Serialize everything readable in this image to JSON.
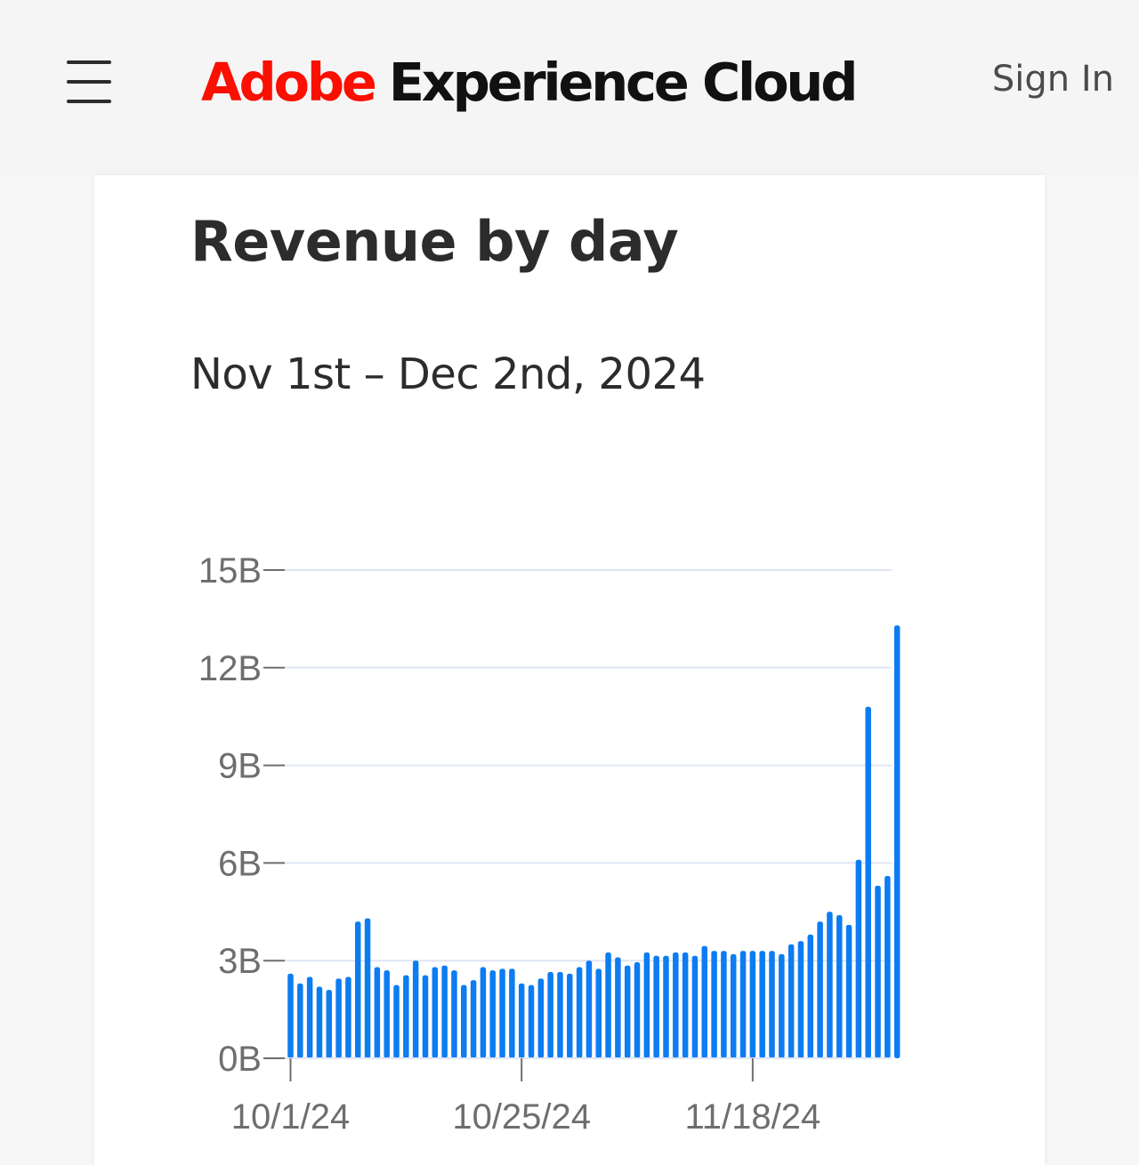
{
  "header": {
    "brand": "Adobe",
    "product": "Experience Cloud",
    "signin_label": "Sign In"
  },
  "card": {
    "title": "Revenue by day",
    "subtitle": "Nov 1st – Dec 2nd, 2024"
  },
  "chart_data": {
    "type": "bar",
    "title": "Revenue by day",
    "subtitle": "Nov 1st – Dec 2nd, 2024",
    "xlabel": "",
    "ylabel": "",
    "ylim": [
      0,
      15
    ],
    "y_ticks": [
      0,
      3,
      6,
      9,
      12,
      15
    ],
    "y_tick_labels": [
      "0B",
      "3B",
      "6B",
      "9B",
      "12B",
      "15B"
    ],
    "x_tick_labels": [
      "10/1/24",
      "10/25/24",
      "11/18/24"
    ],
    "x_tick_indices": [
      0,
      24,
      48
    ],
    "grid": true,
    "bar_color": "#0d7cf2",
    "values": [
      2.6,
      2.3,
      2.5,
      2.2,
      2.1,
      2.45,
      2.5,
      4.2,
      4.3,
      2.8,
      2.7,
      2.25,
      2.55,
      3.0,
      2.55,
      2.8,
      2.85,
      2.7,
      2.25,
      2.4,
      2.8,
      2.7,
      2.75,
      2.75,
      2.3,
      2.25,
      2.45,
      2.65,
      2.65,
      2.6,
      2.8,
      3.0,
      2.75,
      3.25,
      3.1,
      2.85,
      2.95,
      3.25,
      3.15,
      3.15,
      3.25,
      3.25,
      3.15,
      3.45,
      3.3,
      3.3,
      3.2,
      3.3,
      3.3,
      3.3,
      3.3,
      3.2,
      3.5,
      3.6,
      3.8,
      4.2,
      4.5,
      4.4,
      4.1,
      6.1,
      10.8,
      5.3,
      5.6,
      13.3
    ]
  }
}
